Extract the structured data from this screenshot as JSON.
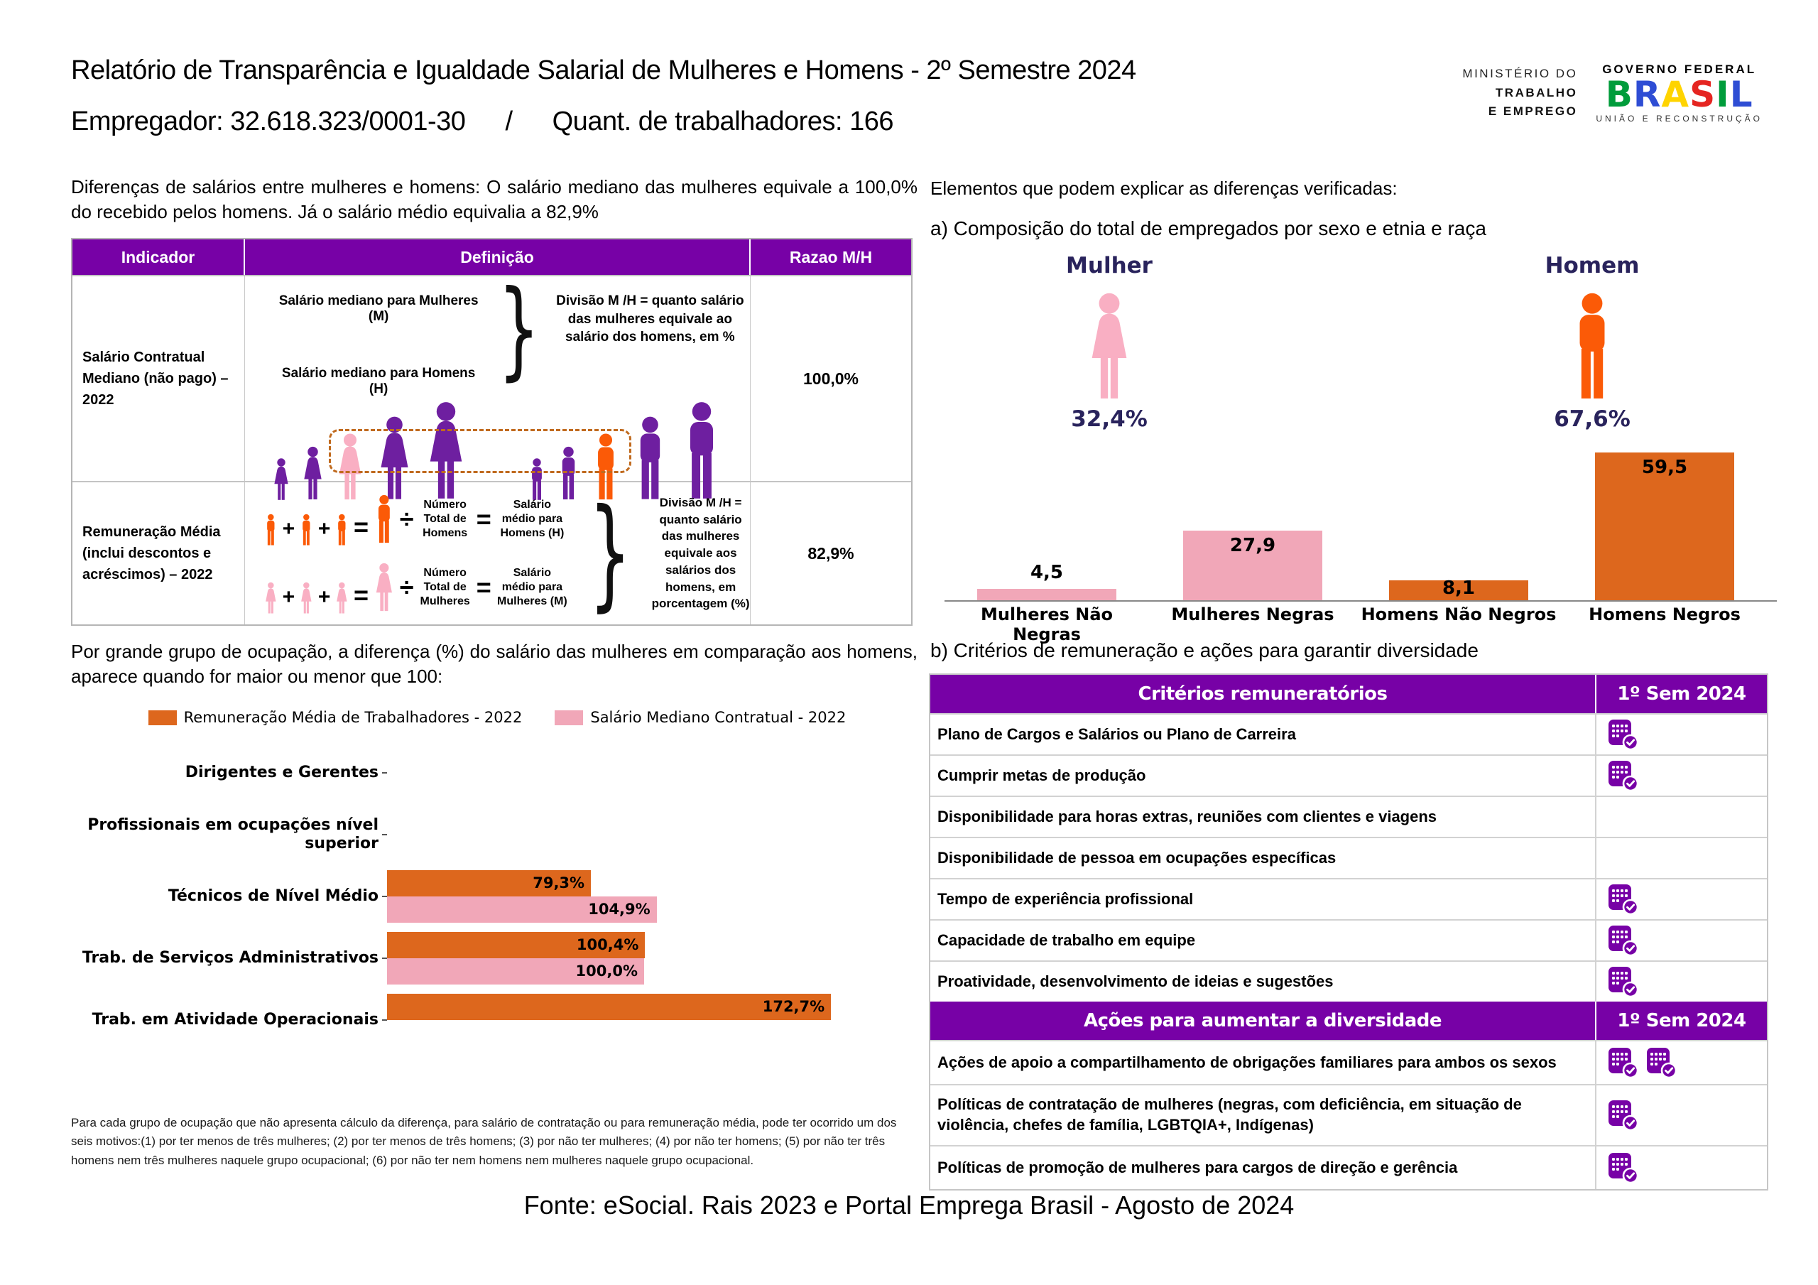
{
  "colors": {
    "purple_header": "#7701A6",
    "figure_purple": "#6E1FA0",
    "figure_pink": "#F9AFC3",
    "figure_orange": "#FB5A07",
    "bar_orange": "#DD671D",
    "bar_pink": "#F1A7B8",
    "navy": "#29235C",
    "brasil_letter_colors": [
      "#009C3B",
      "#2E4DD4",
      "#FFD400",
      "#E52521",
      "#009C3B",
      "#2E4DD4"
    ]
  },
  "header": {
    "title": "Relatório de Transparência e Igualdade Salarial de Mulheres e Homens - 2º Semestre 2024",
    "employer": "Empregador: 32.618.323/0001-30",
    "separator": "/",
    "workers": "Quant. de trabalhadores: 166",
    "logo": {
      "ministry_line1": "MINISTÉRIO DO",
      "ministry_line2": "TRABALHO",
      "ministry_line3": "E EMPREGO",
      "gov_top": "GOVERNO FEDERAL",
      "gov_name": "BRASIL",
      "gov_bottom": "UNIÃO E RECONSTRUÇÃO"
    }
  },
  "left_top": {
    "intro": "Diferenças de salários entre mulheres e homens: O salário mediano das mulheres equivale a 100,0% do recebido pelos homens. Já o salário médio equivalia a 82,9%",
    "table": {
      "col_indicador": "Indicador",
      "col_definicao": "Definição",
      "col_razao": "Razao M/H",
      "symbols": {
        "brace": "}",
        "plus": "+",
        "equals": "=",
        "divide": "÷"
      },
      "row_mediano": {
        "indicator": "Salário Contratual Mediano (não pago) – 2022",
        "def_line1": "Salário mediano para Mulheres (M)",
        "def_line2": "Salário mediano para Homens (H)",
        "note": "Divisão M /H = quanto salário das mulheres equivale ao salário dos homens, em %",
        "value": "100,0%"
      },
      "row_media": {
        "indicator": "Remuneração Média (inclui descontos e acréscimos) – 2022",
        "men_total": "Número Total de Homens",
        "men_result": "Salário médio para Homens (H)",
        "women_total": "Número Total de Mulheres",
        "women_result": "Salário médio para Mulheres (M)",
        "note": "Divisão M /H = quanto salário das mulheres equivale aos salários dos homens, em porcentagem (%)",
        "value": "82,9%"
      }
    }
  },
  "right_top": {
    "heading": "Elementos que podem explicar as diferenças verificadas:",
    "subheading": "a) Composição do total de empregados por sexo e etnia e raça",
    "mulher_label": "Mulher",
    "mulher_pct": "32,4%",
    "homem_label": "Homem",
    "homem_pct": "67,6%"
  },
  "left_bottom": {
    "intro": "Por grande grupo de ocupação, a diferença (%) do salário das mulheres em comparação aos homens, aparece quando for maior ou menor que 100:",
    "footnote": "Para cada grupo de ocupação que não apresenta cálculo da diferença, para salário de contratação ou para remuneração média, pode ter ocorrido um dos seis motivos:(1) por ter menos de três mulheres; (2) por ter menos de três homens; (3) por não ter mulheres; (4) por não ter homens; (5) por não ter três homens nem três mulheres naquele grupo ocupacional; (6) por não ter nem homens nem mulheres naquele grupo ocupacional."
  },
  "right_bottom": {
    "heading": "b) Critérios de remuneração e ações para garantir diversidade",
    "criterios_header": "Critérios remuneratórios",
    "period_header": "1º Sem 2024",
    "acoes_header": "Ações para aumentar a diversidade",
    "criterios": [
      {
        "label": "Plano de Cargos e Salários ou Plano de Carreira",
        "checks": 1
      },
      {
        "label": "Cumprir metas de produção",
        "checks": 1
      },
      {
        "label": "Disponibilidade para horas extras, reuniões com clientes e viagens",
        "checks": 0
      },
      {
        "label": "Disponibilidade de pessoa em ocupações específicas",
        "checks": 0
      },
      {
        "label": "Tempo de experiência profissional",
        "checks": 1
      },
      {
        "label": "Capacidade de trabalho em equipe",
        "checks": 1
      },
      {
        "label": "Proatividade, desenvolvimento de ideias e sugestões",
        "checks": 1
      }
    ],
    "acoes": [
      {
        "label": "Ações de apoio a compartilhamento de obrigações familiares para ambos os sexos",
        "checks": 2
      },
      {
        "label": "Políticas de contratação de mulheres (negras, com deficiência, em situação de violência, chefes de família, LGBTQIA+, Indígenas)",
        "checks": 1
      },
      {
        "label": "Políticas de promoção de mulheres para cargos de direção e gerência",
        "checks": 1
      }
    ]
  },
  "footer": {
    "source": "Fonte: eSocial. Rais 2023 e Portal Emprega Brasil - Agosto de 2024"
  },
  "chart_data": [
    {
      "type": "bar",
      "title": "a) Composição do total de empregados por sexo e etnia e raça",
      "categories": [
        "Mulheres Não Negras",
        "Mulheres Negras",
        "Homens Não Negros",
        "Homens Negros"
      ],
      "values": [
        4.5,
        27.9,
        8.1,
        59.5
      ],
      "value_labels": [
        "4,5",
        "27,9",
        "8,1",
        "59,5"
      ],
      "colors": [
        "#F1A7B8",
        "#F1A7B8",
        "#DD671D",
        "#DD671D"
      ],
      "ylim": [
        0,
        62
      ],
      "grid": false,
      "pictogram": {
        "mulher_pct": 32.4,
        "homem_pct": 67.6
      }
    },
    {
      "type": "bar",
      "orientation": "horizontal",
      "categories": [
        "Dirigentes e Gerentes",
        "Profissionais em ocupações nível superior",
        "Técnicos de Nível Médio",
        "Trab. de Serviços Administrativos",
        "Trab. em Atividade Operacionais"
      ],
      "series": [
        {
          "name": "Remuneração Média de Trabalhadores - 2022",
          "color": "#DD671D",
          "values": [
            null,
            null,
            79.3,
            100.4,
            172.7
          ],
          "labels": [
            null,
            null,
            "79,3%",
            "100,4%",
            "172,7%"
          ]
        },
        {
          "name": "Salário Mediano Contratual - 2022",
          "color": "#F1A7B8",
          "values": [
            null,
            null,
            104.9,
            100.0,
            null
          ],
          "labels": [
            null,
            null,
            "104,9%",
            "100,0%",
            null
          ]
        }
      ],
      "xlim": [
        0,
        182
      ],
      "legend_position": "top"
    }
  ]
}
